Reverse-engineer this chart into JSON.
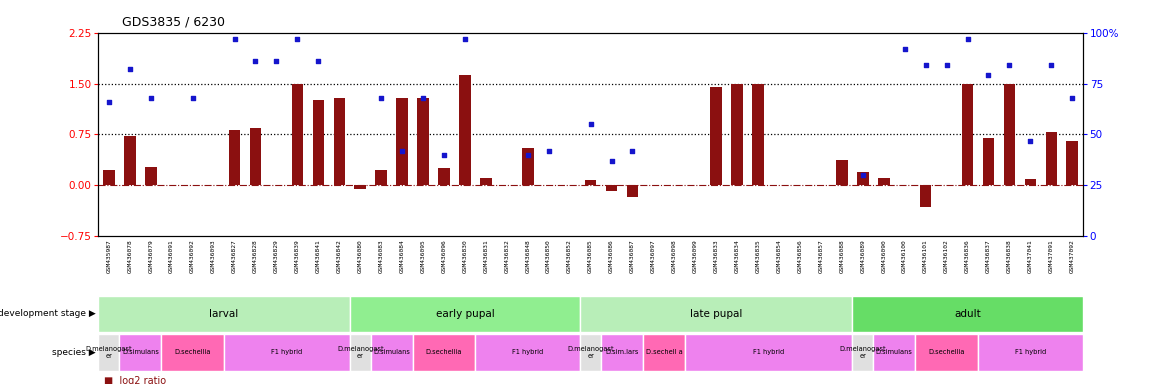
{
  "title": "GDS3835 / 6230",
  "gsm_labels": [
    "GSM435987",
    "GSM436078",
    "GSM436079",
    "GSM436091",
    "GSM436092",
    "GSM436093",
    "GSM436827",
    "GSM436828",
    "GSM436829",
    "GSM436839",
    "GSM436841",
    "GSM436842",
    "GSM436080",
    "GSM436083",
    "GSM436084",
    "GSM436095",
    "GSM436096",
    "GSM436830",
    "GSM436831",
    "GSM436832",
    "GSM436848",
    "GSM436850",
    "GSM436852",
    "GSM436085",
    "GSM436086",
    "GSM436087",
    "GSM436097",
    "GSM436098",
    "GSM436099",
    "GSM436833",
    "GSM436834",
    "GSM436835",
    "GSM436854",
    "GSM436856",
    "GSM436857",
    "GSM436088",
    "GSM436089",
    "GSM436090",
    "GSM436100",
    "GSM436101",
    "GSM436102",
    "GSM436836",
    "GSM436837",
    "GSM436838",
    "GSM437041",
    "GSM437091",
    "GSM437092"
  ],
  "log2_ratio": [
    0.22,
    0.72,
    0.27,
    0.0,
    0.0,
    0.0,
    0.82,
    0.84,
    0.0,
    1.5,
    1.26,
    1.28,
    -0.05,
    0.22,
    1.28,
    1.28,
    0.25,
    1.62,
    0.1,
    0.0,
    0.55,
    0.0,
    0.0,
    0.08,
    -0.08,
    -0.18,
    0.0,
    0.0,
    0.0,
    1.45,
    1.5,
    1.5,
    0.0,
    0.0,
    0.0,
    0.38,
    0.2,
    0.1,
    0.0,
    -0.32,
    0.0,
    1.5,
    0.7,
    1.5,
    0.09,
    0.78,
    0.65
  ],
  "percentile_pct": [
    66,
    82,
    68,
    0,
    68,
    0,
    97,
    86,
    86,
    97,
    86,
    0,
    0,
    68,
    42,
    68,
    40,
    97,
    0,
    0,
    40,
    42,
    0,
    55,
    37,
    42,
    0,
    0,
    0,
    0,
    0,
    0,
    0,
    0,
    0,
    0,
    30,
    0,
    92,
    84,
    84,
    97,
    79,
    84,
    47,
    84,
    68
  ],
  "development_stages": [
    {
      "label": "larval",
      "start": 0,
      "end": 11,
      "color": "#B8EEB8"
    },
    {
      "label": "early pupal",
      "start": 12,
      "end": 22,
      "color": "#90EE90"
    },
    {
      "label": "late pupal",
      "start": 23,
      "end": 35,
      "color": "#B8EEB8"
    },
    {
      "label": "adult",
      "start": 36,
      "end": 46,
      "color": "#66DD66"
    }
  ],
  "species_groups": [
    {
      "label": "D.melanogast\ner",
      "start": 0,
      "end": 0,
      "color": "#E0E0E0"
    },
    {
      "label": "D.simulans",
      "start": 1,
      "end": 2,
      "color": "#EE82EE"
    },
    {
      "label": "D.sechellia",
      "start": 3,
      "end": 5,
      "color": "#FF69B4"
    },
    {
      "label": "F1 hybrid",
      "start": 6,
      "end": 11,
      "color": "#EE82EE"
    },
    {
      "label": "D.melanogast\ner",
      "start": 12,
      "end": 12,
      "color": "#E0E0E0"
    },
    {
      "label": "D.simulans",
      "start": 13,
      "end": 14,
      "color": "#EE82EE"
    },
    {
      "label": "D.sechellia",
      "start": 15,
      "end": 17,
      "color": "#FF69B4"
    },
    {
      "label": "F1 hybrid",
      "start": 18,
      "end": 22,
      "color": "#EE82EE"
    },
    {
      "label": "D.melanogast\ner",
      "start": 23,
      "end": 23,
      "color": "#E0E0E0"
    },
    {
      "label": "D.sim.lars",
      "start": 24,
      "end": 25,
      "color": "#EE82EE"
    },
    {
      "label": "D.sechell a",
      "start": 26,
      "end": 27,
      "color": "#FF69B4"
    },
    {
      "label": "F1 hybrid",
      "start": 28,
      "end": 35,
      "color": "#EE82EE"
    },
    {
      "label": "D.melanogast\ner",
      "start": 36,
      "end": 36,
      "color": "#E0E0E0"
    },
    {
      "label": "D.simulans",
      "start": 37,
      "end": 38,
      "color": "#EE82EE"
    },
    {
      "label": "D.sechellia",
      "start": 39,
      "end": 41,
      "color": "#FF69B4"
    },
    {
      "label": "F1 hybrid",
      "start": 42,
      "end": 46,
      "color": "#EE82EE"
    }
  ],
  "bar_color": "#8B1010",
  "scatter_color": "#1515CC",
  "ymin": -0.75,
  "ymax": 2.25,
  "yticks_left": [
    -0.75,
    0.0,
    0.75,
    1.5,
    2.25
  ],
  "yticks_right": [
    0,
    25,
    50,
    75,
    100
  ],
  "hlines": [
    0.75,
    1.5
  ],
  "zero_line": 0.0
}
